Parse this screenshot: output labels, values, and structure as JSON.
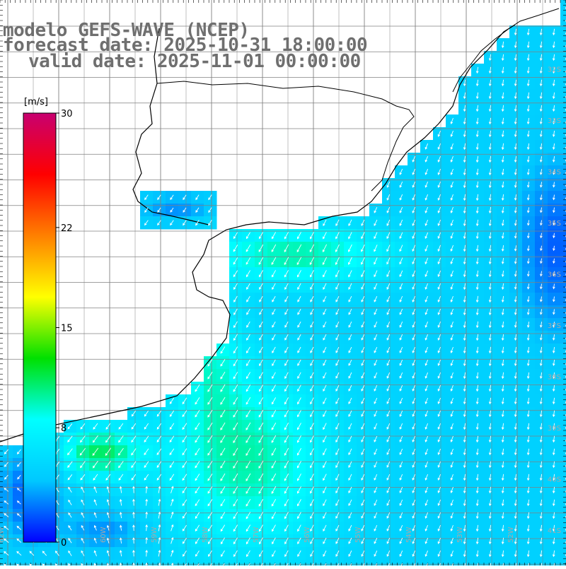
{
  "title": {
    "line1": "modelo GEFS-WAVE (NCEP)",
    "line2": "forecast date: 2025-10-31 18:00:00",
    "line3": "valid date: 2025-11-01 00:00:00"
  },
  "colorbar": {
    "unit": "[m/s]",
    "ticks": [
      "30",
      "22",
      "15",
      "8",
      "0"
    ],
    "tick_values": [
      30,
      22,
      15,
      8,
      0
    ],
    "min": 0,
    "max": 30,
    "colors": [
      "#0000ff",
      "#00c8ff",
      "#00ffff",
      "#00e000",
      "#ffff00",
      "#ff8000",
      "#ff0000",
      "#c80070"
    ]
  },
  "map": {
    "lat_labels": [
      "32S",
      "33S",
      "34S",
      "35S",
      "36S",
      "37S",
      "38S",
      "39S",
      "40S",
      "41S"
    ],
    "lat_values": [
      -32,
      -33,
      -34,
      -35,
      -36,
      -37,
      -38,
      -39,
      -40,
      -41
    ],
    "lon_labels": [
      "62W",
      "61W",
      "60W",
      "59W",
      "58W",
      "57W",
      "56W",
      "55W",
      "54W",
      "53W",
      "52W",
      "51W"
    ],
    "lon_values": [
      -62,
      -61,
      -60,
      -59,
      -58,
      -57,
      -56,
      -55,
      -54,
      -53,
      -52,
      -51
    ],
    "field": "wind speed and direction",
    "arrow_color": "#ffffff",
    "land_color": "#ffffff",
    "coast_color": "#000000",
    "grid_color": "#808080"
  }
}
